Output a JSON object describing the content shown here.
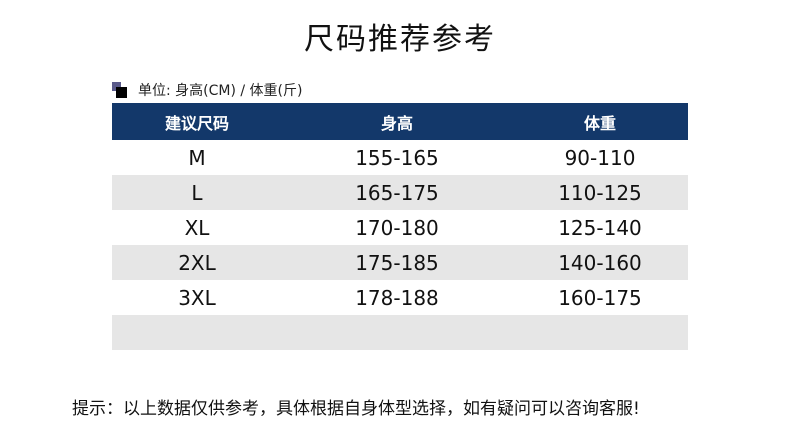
{
  "title": "尺码推荐参考",
  "unit_label": "单位: 身高(CM) / 体重(斤)",
  "colors": {
    "header_bg": "#13386a",
    "stripe": "#e6e6e6"
  },
  "table": {
    "headers": [
      "建议尺码",
      "身高",
      "体重"
    ],
    "rows": [
      [
        "M",
        "155-165",
        "90-110"
      ],
      [
        "L",
        "165-175",
        "110-125"
      ],
      [
        "XL",
        "170-180",
        "125-140"
      ],
      [
        "2XL",
        "175-185",
        "140-160"
      ],
      [
        "3XL",
        "178-188",
        "160-175"
      ],
      [
        "",
        "",
        ""
      ]
    ]
  },
  "note": "提示：以上数据仅供参考，具体根据自身体型选择，如有疑问可以咨询客服!"
}
